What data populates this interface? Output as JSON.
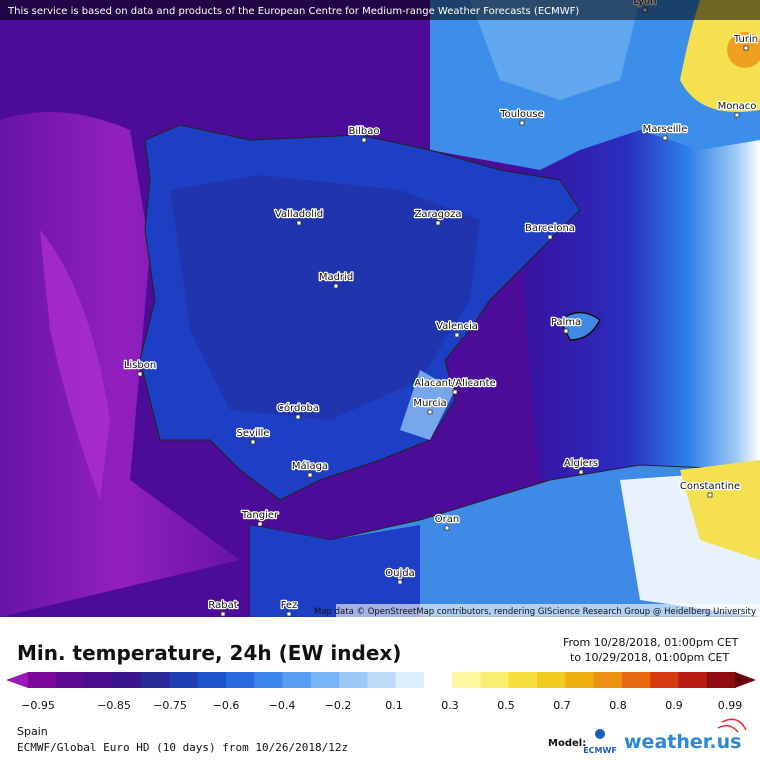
{
  "notice": "This service is based on data and products of the European Centre for Medium-range Weather Forecasts (ECMWF)",
  "attribution": "Map data © OpenStreetMap contributors, rendering GIScience Research Group @ Heidelberg University",
  "cities": [
    "Lyon",
    "Turin",
    "Monaco",
    "Toulouse",
    "Marseille",
    "Bilbao",
    "Valladolid",
    "Zaragoza",
    "Barcelona",
    "Madrid",
    "Valencia",
    "Palma",
    "Lisbon",
    "Alacant/Alicante",
    "Murcia",
    "Córdoba",
    "Seville",
    "Málaga",
    "Algiers",
    "Constantine",
    "Tangier",
    "Oran",
    "Oujda",
    "Rabat",
    "Fez"
  ],
  "title": "Min. temperature, 24h (EW index)",
  "period": {
    "from": "From 10/28/2018, 01:00pm CET",
    "to": "to 10/29/2018, 01:00pm CET"
  },
  "legend": {
    "ticks": [
      "−0.95",
      "−0.85",
      "−0.75",
      "−0.6",
      "−0.4",
      "−0.2",
      "0.1",
      "0.3",
      "0.5",
      "0.7",
      "0.8",
      "0.9",
      "0.99"
    ]
  },
  "footer": {
    "region": "Spain",
    "model_run": "ECMWF/Global Euro HD (10 days) from 10/26/2018/12z",
    "model_label": "Model:",
    "ecmwf": "ECMWF",
    "brand": "weather.us"
  }
}
